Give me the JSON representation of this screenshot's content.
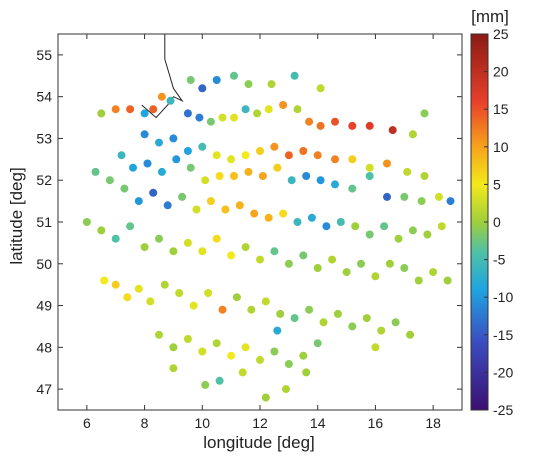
{
  "chart_data": {
    "type": "scatter",
    "xlabel": "longitude [deg]",
    "ylabel": "latitude [deg]",
    "xlim": [
      5,
      19
    ],
    "ylim": [
      46.5,
      55.5
    ],
    "xticks": [
      6,
      8,
      10,
      12,
      14,
      16,
      18
    ],
    "yticks": [
      47,
      48,
      49,
      50,
      51,
      52,
      53,
      54,
      55
    ],
    "grid": false,
    "colorbar": {
      "label": "[mm]",
      "min": -25,
      "max": 25,
      "ticks": [
        -25,
        -20,
        -15,
        -10,
        -5,
        0,
        5,
        10,
        15,
        20,
        25
      ],
      "colormap": [
        "#3b0f70",
        "#3b4cc0",
        "#1fa4e0",
        "#4fc1a6",
        "#9fcf3a",
        "#f4e91a",
        "#f7a31c",
        "#e8402a",
        "#8a1a15"
      ],
      "colormap_values": [
        -25,
        -16,
        -9,
        -4,
        0,
        5,
        10,
        16,
        25
      ]
    },
    "coastline": [
      [
        7.9,
        53.8
      ],
      [
        8.4,
        53.5
      ],
      [
        8.8,
        53.8
      ],
      [
        9.0,
        54.0
      ],
      [
        9.3,
        53.9
      ],
      [
        9.0,
        54.2
      ],
      [
        8.7,
        54.9
      ],
      [
        8.7,
        55.5
      ]
    ],
    "points": [
      [
        6.5,
        53.6,
        0
      ],
      [
        7.0,
        53.7,
        12
      ],
      [
        7.5,
        53.7,
        14
      ],
      [
        8.0,
        53.6,
        -9
      ],
      [
        8.3,
        53.7,
        14
      ],
      [
        8.6,
        54.0,
        11
      ],
      [
        8.9,
        53.9,
        -6
      ],
      [
        9.5,
        53.6,
        -13
      ],
      [
        9.9,
        53.5,
        -12
      ],
      [
        10.3,
        53.4,
        -2
      ],
      [
        10.7,
        53.5,
        3
      ],
      [
        11.1,
        53.5,
        4
      ],
      [
        11.5,
        53.7,
        -6
      ],
      [
        11.9,
        53.6,
        1
      ],
      [
        12.3,
        53.7,
        4
      ],
      [
        12.8,
        53.8,
        11
      ],
      [
        13.3,
        53.7,
        1
      ],
      [
        13.7,
        53.4,
        12
      ],
      [
        14.1,
        53.3,
        13
      ],
      [
        14.6,
        53.4,
        15
      ],
      [
        15.2,
        53.3,
        16
      ],
      [
        15.8,
        53.3,
        17
      ],
      [
        16.6,
        53.2,
        20
      ],
      [
        17.3,
        53.1,
        1
      ],
      [
        17.7,
        53.6,
        -1
      ],
      [
        9.6,
        54.4,
        -2
      ],
      [
        10.0,
        54.2,
        -14
      ],
      [
        10.5,
        54.4,
        -11
      ],
      [
        11.1,
        54.5,
        -3
      ],
      [
        11.6,
        54.3,
        -1
      ],
      [
        12.4,
        54.3,
        1
      ],
      [
        13.2,
        54.5,
        -5
      ],
      [
        14.1,
        54.2,
        2
      ],
      [
        8.0,
        53.1,
        -11
      ],
      [
        8.5,
        52.9,
        -8
      ],
      [
        9.0,
        53.0,
        -11
      ],
      [
        9.5,
        52.7,
        -9
      ],
      [
        10.0,
        52.8,
        -5
      ],
      [
        10.5,
        52.6,
        4
      ],
      [
        11.0,
        52.5,
        4
      ],
      [
        11.5,
        52.6,
        5
      ],
      [
        12.0,
        52.7,
        7
      ],
      [
        12.5,
        52.8,
        11
      ],
      [
        13.0,
        52.6,
        14
      ],
      [
        13.5,
        52.7,
        13
      ],
      [
        14.0,
        52.6,
        12
      ],
      [
        14.6,
        52.5,
        12
      ],
      [
        15.2,
        52.5,
        7
      ],
      [
        15.8,
        52.3,
        3
      ],
      [
        16.4,
        52.4,
        11
      ],
      [
        17.1,
        52.2,
        2
      ],
      [
        17.7,
        52.1,
        1
      ],
      [
        7.2,
        52.6,
        -6
      ],
      [
        7.6,
        52.3,
        -9
      ],
      [
        8.1,
        52.4,
        -11
      ],
      [
        8.6,
        52.2,
        -8
      ],
      [
        9.1,
        52.5,
        -10
      ],
      [
        9.6,
        52.3,
        -2
      ],
      [
        10.1,
        52.0,
        3
      ],
      [
        10.6,
        52.1,
        6
      ],
      [
        11.1,
        52.1,
        8
      ],
      [
        11.6,
        52.2,
        9
      ],
      [
        12.1,
        52.1,
        10
      ],
      [
        12.6,
        52.3,
        7
      ],
      [
        13.1,
        52.0,
        -6
      ],
      [
        13.6,
        52.1,
        -11
      ],
      [
        14.1,
        52.0,
        -10
      ],
      [
        14.6,
        51.9,
        -8
      ],
      [
        15.2,
        51.8,
        -3
      ],
      [
        15.8,
        52.1,
        -4
      ],
      [
        16.4,
        51.6,
        -14
      ],
      [
        17.0,
        51.6,
        -2
      ],
      [
        17.6,
        51.5,
        -1
      ],
      [
        18.2,
        51.6,
        3
      ],
      [
        18.6,
        51.5,
        -12
      ],
      [
        6.3,
        52.2,
        -3
      ],
      [
        6.8,
        52.0,
        -2
      ],
      [
        7.3,
        51.8,
        -2
      ],
      [
        7.8,
        51.5,
        -10
      ],
      [
        8.3,
        51.7,
        -14
      ],
      [
        8.8,
        51.4,
        -12
      ],
      [
        9.3,
        51.6,
        -2
      ],
      [
        9.8,
        51.3,
        3
      ],
      [
        10.3,
        51.5,
        7
      ],
      [
        10.8,
        51.3,
        8
      ],
      [
        11.3,
        51.4,
        9
      ],
      [
        11.8,
        51.2,
        10
      ],
      [
        12.3,
        51.1,
        9
      ],
      [
        12.8,
        51.2,
        6
      ],
      [
        13.3,
        51.0,
        -6
      ],
      [
        13.8,
        51.1,
        -8
      ],
      [
        14.3,
        50.9,
        -11
      ],
      [
        14.8,
        51.0,
        -5
      ],
      [
        15.3,
        50.9,
        0
      ],
      [
        15.8,
        50.7,
        -2
      ],
      [
        16.3,
        50.9,
        -3
      ],
      [
        16.8,
        50.6,
        0
      ],
      [
        17.3,
        50.8,
        -1
      ],
      [
        17.8,
        50.7,
        0
      ],
      [
        18.3,
        50.9,
        2
      ],
      [
        6.0,
        51.0,
        -1
      ],
      [
        6.5,
        50.8,
        0
      ],
      [
        7.0,
        50.6,
        -4
      ],
      [
        7.5,
        50.9,
        -3
      ],
      [
        8.0,
        50.4,
        0
      ],
      [
        8.5,
        50.6,
        -1
      ],
      [
        9.0,
        50.3,
        0
      ],
      [
        9.5,
        50.5,
        3
      ],
      [
        10.0,
        50.3,
        4
      ],
      [
        10.5,
        50.6,
        6
      ],
      [
        11.0,
        50.2,
        5
      ],
      [
        11.5,
        50.4,
        1
      ],
      [
        12.0,
        50.1,
        2
      ],
      [
        12.5,
        50.3,
        -3
      ],
      [
        13.0,
        50.0,
        -1
      ],
      [
        13.5,
        50.2,
        -2
      ],
      [
        14.0,
        49.9,
        0
      ],
      [
        14.5,
        50.1,
        1
      ],
      [
        15.0,
        49.8,
        0
      ],
      [
        15.5,
        50.0,
        -1
      ],
      [
        16.0,
        49.7,
        1
      ],
      [
        16.5,
        50.0,
        0
      ],
      [
        17.0,
        49.9,
        -1
      ],
      [
        17.5,
        49.6,
        0
      ],
      [
        18.0,
        49.8,
        1
      ],
      [
        18.5,
        49.6,
        0
      ],
      [
        6.6,
        49.6,
        5
      ],
      [
        7.0,
        49.5,
        7
      ],
      [
        7.4,
        49.2,
        6
      ],
      [
        7.8,
        49.4,
        4
      ],
      [
        8.2,
        49.1,
        3
      ],
      [
        8.7,
        49.5,
        1
      ],
      [
        9.2,
        49.3,
        2
      ],
      [
        9.7,
        49.0,
        4
      ],
      [
        10.2,
        49.3,
        3
      ],
      [
        10.7,
        48.9,
        12
      ],
      [
        11.2,
        49.2,
        0
      ],
      [
        11.7,
        48.9,
        1
      ],
      [
        12.2,
        49.1,
        2
      ],
      [
        12.7,
        48.8,
        0
      ],
      [
        13.2,
        48.7,
        -3
      ],
      [
        13.7,
        48.9,
        -1
      ],
      [
        14.2,
        48.6,
        1
      ],
      [
        14.7,
        48.8,
        0
      ],
      [
        15.2,
        48.5,
        -1
      ],
      [
        15.7,
        48.7,
        0
      ],
      [
        16.2,
        48.4,
        1
      ],
      [
        16.7,
        48.6,
        -1
      ],
      [
        17.2,
        48.3,
        0
      ],
      [
        8.5,
        48.3,
        1
      ],
      [
        9.0,
        48.0,
        0
      ],
      [
        9.5,
        48.2,
        2
      ],
      [
        10.0,
        47.9,
        3
      ],
      [
        10.5,
        48.1,
        1
      ],
      [
        11.0,
        47.8,
        5
      ],
      [
        11.5,
        48.0,
        4
      ],
      [
        12.0,
        47.7,
        2
      ],
      [
        12.5,
        47.9,
        -1
      ],
      [
        13.0,
        47.6,
        -1
      ],
      [
        13.5,
        47.8,
        0
      ],
      [
        14.0,
        48.1,
        -2
      ],
      [
        12.6,
        48.4,
        -8
      ],
      [
        10.1,
        47.1,
        -1
      ],
      [
        10.6,
        47.2,
        -4
      ],
      [
        11.4,
        47.4,
        2
      ],
      [
        12.2,
        46.8,
        0
      ],
      [
        12.9,
        47.0,
        1
      ],
      [
        9.0,
        47.5,
        1
      ],
      [
        13.6,
        47.4,
        0
      ],
      [
        16.0,
        48.0,
        2
      ]
    ]
  }
}
